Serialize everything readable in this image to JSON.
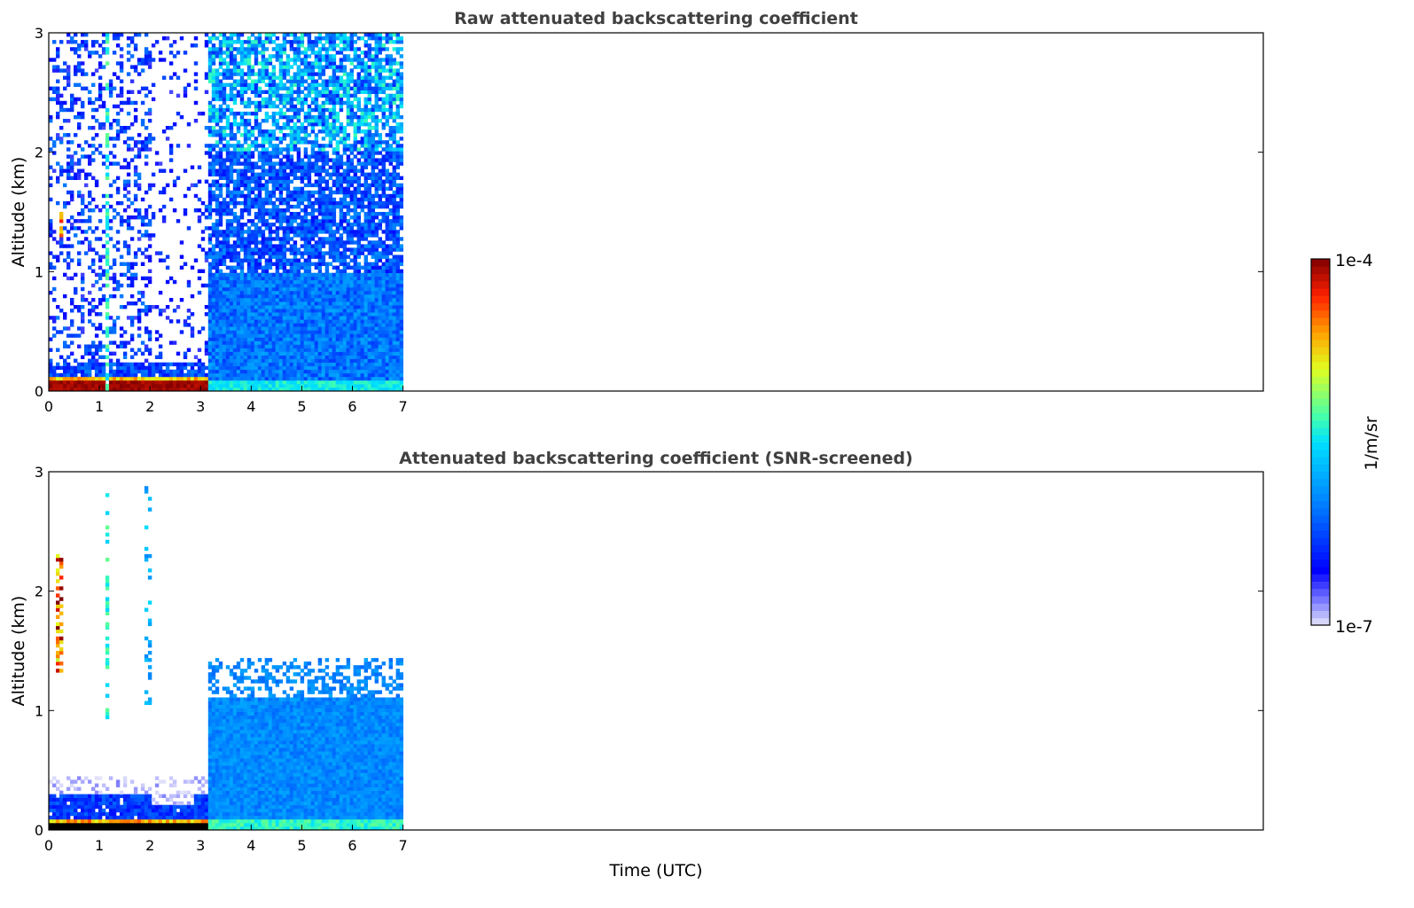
{
  "chart_data": [
    {
      "type": "heatmap",
      "title": "Raw attenuated backscattering coefficient",
      "xlabel": "",
      "ylabel": "Altitude (km)",
      "xlim": [
        0,
        24
      ],
      "ylim": [
        0,
        3
      ],
      "xticks": [
        "0",
        "1",
        "2",
        "3",
        "4",
        "5",
        "6",
        "7"
      ],
      "yticks": [
        "0",
        "1",
        "2",
        "3"
      ],
      "value_scale": "log10",
      "regions": [
        {
          "t": [
            0,
            3.15
          ],
          "z": [
            0.25,
            3
          ],
          "log_beta": [
            -6.7,
            -6.0
          ],
          "coverage": 0.3
        },
        {
          "t": [
            2.0,
            3.1
          ],
          "z": [
            0.25,
            3
          ],
          "log_beta": [
            -6.7,
            -6.2
          ],
          "coverage": 0.1
        },
        {
          "t": [
            0,
            3.15
          ],
          "z": [
            0.12,
            0.25
          ],
          "log_beta": [
            -6.5,
            -6.0
          ],
          "coverage": 0.9
        },
        {
          "t": [
            0,
            3.15
          ],
          "z": [
            0.09,
            0.12
          ],
          "log_beta": [
            -4.9,
            -4.5
          ],
          "coverage": 1
        },
        {
          "t": [
            0,
            3.15
          ],
          "z": [
            0,
            0.09
          ],
          "log_beta": [
            -4.15,
            -4.0
          ],
          "coverage": 1
        },
        {
          "t": [
            1.1,
            1.2
          ],
          "z": [
            0,
            3
          ],
          "log_beta": [
            -5.6,
            -5.2
          ],
          "coverage": 0.6
        },
        {
          "t": [
            0.2,
            0.3
          ],
          "z": [
            1.3,
            1.5
          ],
          "log_beta": [
            -4.8,
            -4.3
          ],
          "coverage": 0.8
        },
        {
          "t": [
            3.15,
            7
          ],
          "z": [
            2,
            3
          ],
          "log_beta": [
            -6.4,
            -5.3
          ],
          "coverage": 0.7
        },
        {
          "t": [
            3.15,
            7
          ],
          "z": [
            1,
            2
          ],
          "log_beta": [
            -6.5,
            -5.9
          ],
          "coverage": 0.8
        },
        {
          "t": [
            3.15,
            7
          ],
          "z": [
            0.1,
            1
          ],
          "log_beta": [
            -6.3,
            -5.8
          ],
          "coverage": 1
        },
        {
          "t": [
            3.15,
            7
          ],
          "z": [
            0,
            0.1
          ],
          "log_beta": [
            -5.6,
            -5.3
          ],
          "coverage": 1
        }
      ]
    },
    {
      "type": "heatmap",
      "title": "Attenuated backscattering coefficient (SNR-screened)",
      "xlabel": "Time (UTC)",
      "ylabel": "Altitude (km)",
      "xlim": [
        0,
        24
      ],
      "ylim": [
        0,
        3
      ],
      "xticks": [
        "0",
        "1",
        "2",
        "3",
        "4",
        "5",
        "6",
        "7"
      ],
      "yticks": [
        "0",
        "1",
        "2",
        "3"
      ],
      "value_scale": "log10",
      "regions": [
        {
          "t": [
            0,
            3.15
          ],
          "z": [
            0.3,
            0.45
          ],
          "log_beta": [
            -7,
            -6.8
          ],
          "coverage": 0.25
        },
        {
          "t": [
            0,
            3.15
          ],
          "z": [
            0.1,
            0.3
          ],
          "log_beta": [
            -6.5,
            -6.1
          ],
          "coverage": 0.95
        },
        {
          "t": [
            2.0,
            2.9
          ],
          "z": [
            0.2,
            0.3
          ],
          "log_beta": [
            -7,
            -6.8
          ],
          "coverage": 0.3
        },
        {
          "t": [
            0,
            3.15
          ],
          "z": [
            0.07,
            0.1
          ],
          "log_beta": [
            -4.9,
            -4.4
          ],
          "coverage": 1
        },
        {
          "t": [
            0,
            3.15
          ],
          "z": [
            0,
            0.07
          ],
          "log_beta": [
            -3.9,
            -3.8
          ],
          "coverage": 1
        },
        {
          "t": [
            1.1,
            1.2
          ],
          "z": [
            0.9,
            2.9
          ],
          "log_beta": [
            -5.6,
            -5.2
          ],
          "coverage": 0.35
        },
        {
          "t": [
            1.9,
            2.0
          ],
          "z": [
            1.0,
            2.9
          ],
          "log_beta": [
            -6.0,
            -5.5
          ],
          "coverage": 0.15
        },
        {
          "t": [
            0.15,
            0.3
          ],
          "z": [
            1.3,
            2.3
          ],
          "log_beta": [
            -5.0,
            -3.8
          ],
          "coverage": 0.5
        },
        {
          "t": [
            3.15,
            7
          ],
          "z": [
            1.1,
            1.45
          ],
          "log_beta": [
            -6.1,
            -5.8
          ],
          "coverage": 0.45
        },
        {
          "t": [
            3.15,
            7
          ],
          "z": [
            0.1,
            1.1
          ],
          "log_beta": [
            -6.1,
            -5.8
          ],
          "coverage": 1
        },
        {
          "t": [
            3.15,
            7
          ],
          "z": [
            0,
            0.1
          ],
          "log_beta": [
            -5.5,
            -5.2
          ],
          "coverage": 1
        }
      ]
    }
  ],
  "colorbar": {
    "label": "1/m/sr",
    "max_label": "1e-4",
    "min_label": "1e-7",
    "range_log10": [
      -7,
      -4
    ]
  },
  "colors": {
    "axis": "#000000",
    "title": "#404040",
    "over": "#000000"
  }
}
